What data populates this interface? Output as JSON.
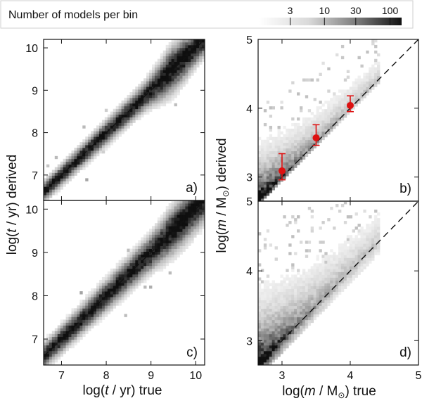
{
  "colorbar": {
    "title": "Number of models per bin",
    "tick_labels": [
      "3",
      "10",
      "30",
      "100"
    ],
    "ticks": [
      3,
      10,
      30,
      100
    ],
    "range": [
      1,
      150
    ],
    "scale": "log",
    "colors": {
      "low": "#ffffff",
      "high": "#111111"
    }
  },
  "age_axes": {
    "ylabel_prefix": "log(",
    "ylabel_italic": "t",
    "ylabel_suffix": " / yr) derived",
    "xlabel_prefix": "log(",
    "xlabel_italic": "t",
    "xlabel_suffix": " / yr) true"
  },
  "mass_axes": {
    "ylabel_prefix": "log(",
    "ylabel_italic": "m",
    "ylabel_suffix": " / M",
    "ylabel_sub": "⊙",
    "ylabel_end": ") derived",
    "xlabel_prefix": "log(",
    "xlabel_italic": "m",
    "xlabel_suffix": " / M",
    "xlabel_sub": "⊙",
    "xlabel_end": ") true"
  },
  "chart_data": [
    {
      "id": "a",
      "panel_label": "a)",
      "type": "heatmap",
      "xlim": [
        6.6,
        10.2
      ],
      "ylim": [
        6.4,
        10.2
      ],
      "xticks": [
        7,
        8,
        9,
        10
      ],
      "yticks": [
        7,
        8,
        9,
        10
      ],
      "xtick_labels": [],
      "ytick_labels": [
        "7",
        "8",
        "9",
        "10"
      ],
      "diagonal": [
        [
          6.6,
          6.6
        ],
        [
          10.2,
          10.2
        ]
      ],
      "density_model": {
        "scatter_base": 0.14,
        "scatter_slope": 0.02,
        "bulge_center": 9.5,
        "bulge_amp": 0.12,
        "peak_counts": 60
      },
      "points": []
    },
    {
      "id": "b",
      "panel_label": "b)",
      "type": "heatmap",
      "xlim": [
        2.65,
        5.0
      ],
      "ylim": [
        2.65,
        5.0
      ],
      "xticks": [
        3,
        4,
        5
      ],
      "yticks": [
        3,
        4,
        5
      ],
      "xtick_labels": [],
      "ytick_labels": [
        "3",
        "4",
        "5"
      ],
      "diagonal": [
        [
          2.65,
          2.65
        ],
        [
          5.0,
          5.0
        ]
      ],
      "density_model": {
        "max_x": 4.3,
        "spread_above": 0.55,
        "spread_below": 0.08,
        "peak_counts": 120
      },
      "points": [
        {
          "x": 3.0,
          "y": 3.09,
          "yerr_low": 0.13,
          "yerr_high": 0.25,
          "color": "#dd1111"
        },
        {
          "x": 3.5,
          "y": 3.57,
          "yerr_low": 0.11,
          "yerr_high": 0.19,
          "color": "#dd1111"
        },
        {
          "x": 4.0,
          "y": 4.04,
          "yerr_low": 0.09,
          "yerr_high": 0.14,
          "color": "#dd1111"
        }
      ]
    },
    {
      "id": "c",
      "panel_label": "c)",
      "type": "heatmap",
      "xlim": [
        6.6,
        10.2
      ],
      "ylim": [
        6.4,
        10.2
      ],
      "xticks": [
        7,
        8,
        9,
        10
      ],
      "yticks": [
        7,
        8,
        9,
        10
      ],
      "xtick_labels": [
        "7",
        "8",
        "9",
        "10"
      ],
      "ytick_labels": [
        "7",
        "8",
        "9",
        "10"
      ],
      "diagonal": [
        [
          6.6,
          6.6
        ],
        [
          10.2,
          10.2
        ]
      ],
      "density_model": {
        "scatter_base": 0.17,
        "scatter_slope": 0.03,
        "bulge_center": 9.6,
        "bulge_amp": 0.06,
        "peak_counts": 40
      },
      "points": []
    },
    {
      "id": "d",
      "panel_label": "d)",
      "type": "heatmap",
      "xlim": [
        2.65,
        5.0
      ],
      "ylim": [
        2.65,
        5.0
      ],
      "xticks": [
        3,
        4,
        5
      ],
      "yticks": [
        3,
        4,
        5
      ],
      "xtick_labels": [
        "3",
        "4",
        "5"
      ],
      "ytick_labels": [
        "3",
        "4",
        "5"
      ],
      "diagonal": [
        [
          2.65,
          2.65
        ],
        [
          5.0,
          5.0
        ]
      ],
      "density_model": {
        "max_x": 4.3,
        "spread_above": 0.75,
        "spread_below": 0.18,
        "peak_counts": 130
      },
      "points": []
    }
  ]
}
